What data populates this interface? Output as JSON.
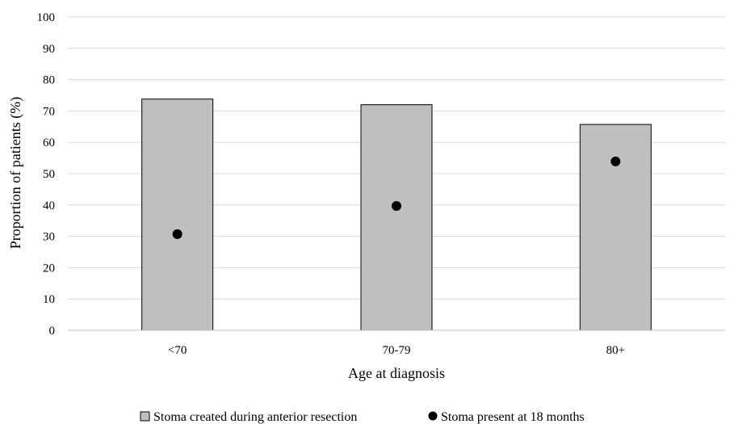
{
  "chart_data": {
    "type": "bar",
    "xlabel": "Age at diagnosis",
    "ylabel": "Proportion of patients (%)",
    "ylim": [
      0,
      100
    ],
    "y_ticks": [
      "0",
      "10",
      "20",
      "30",
      "40",
      "50",
      "60",
      "70",
      "80",
      "90",
      "100"
    ],
    "categories": [
      "<70",
      "70-79",
      "80+"
    ],
    "grid": true,
    "legend_position": "bottom",
    "series": [
      {
        "name": "Stoma created during anterior resection",
        "kind": "bar",
        "color": "#bfbfbf",
        "values": [
          73.8,
          72.0,
          65.7
        ]
      },
      {
        "name": "Stoma present at 18 months",
        "kind": "point",
        "color": "#000000",
        "values": [
          30.7,
          39.7,
          53.9
        ]
      }
    ]
  }
}
